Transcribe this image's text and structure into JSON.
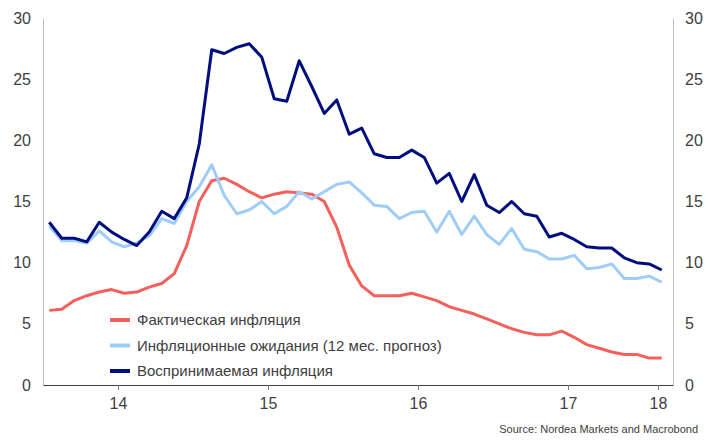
{
  "chart_data": {
    "type": "line",
    "source": "Source: Nordea Markets and Macrobond",
    "x": [
      14.0417,
      14.125,
      14.2083,
      14.2917,
      14.375,
      14.4583,
      14.5417,
      14.625,
      14.7083,
      14.7917,
      14.875,
      14.9583,
      15.0417,
      15.125,
      15.2083,
      15.2917,
      15.375,
      15.4583,
      15.5417,
      15.625,
      15.7083,
      15.7917,
      15.875,
      15.9583,
      16.0417,
      16.125,
      16.2083,
      16.2917,
      16.375,
      16.4583,
      16.5417,
      16.625,
      16.7083,
      16.7917,
      16.875,
      16.9583,
      17.0417,
      17.125,
      17.2083,
      17.2917,
      17.375,
      17.4583,
      17.5417,
      17.625,
      17.7083,
      17.7917,
      17.875,
      17.9583,
      18.0417,
      18.125
    ],
    "xlim": [
      14,
      18.2
    ],
    "xticks": [
      {
        "value": 14.5,
        "label": "14"
      },
      {
        "value": 15.5,
        "label": "15"
      },
      {
        "value": 16.5,
        "label": "16"
      },
      {
        "value": 17.5,
        "label": "17"
      },
      {
        "value": 18.1,
        "label": "18"
      }
    ],
    "ylim": [
      0,
      30
    ],
    "yticks": [
      0,
      5,
      10,
      15,
      20,
      25,
      30
    ],
    "y2lim": [
      0,
      30
    ],
    "y2ticks": [
      0,
      5,
      10,
      15,
      20,
      25,
      30
    ],
    "grid": false,
    "legend": "lower-left",
    "series": [
      {
        "name": "Фактическая инфляция",
        "color": "#f4605b",
        "values": [
          6.1,
          6.2,
          6.9,
          7.3,
          7.6,
          7.8,
          7.5,
          7.6,
          8.0,
          8.3,
          9.1,
          11.4,
          15.0,
          16.7,
          16.9,
          16.4,
          15.8,
          15.3,
          15.6,
          15.8,
          15.7,
          15.6,
          15.0,
          12.9,
          9.8,
          8.1,
          7.3,
          7.3,
          7.3,
          7.5,
          7.2,
          6.9,
          6.4,
          6.1,
          5.8,
          5.4,
          5.0,
          4.6,
          4.3,
          4.1,
          4.1,
          4.4,
          3.9,
          3.3,
          3.0,
          2.7,
          2.5,
          2.5,
          2.2,
          2.2
        ]
      },
      {
        "name": "Инфляционные ожидания (12 мес. прогноз)",
        "color": "#a0cdf8",
        "values": [
          13.0,
          11.8,
          11.8,
          11.6,
          12.6,
          11.7,
          11.3,
          11.6,
          12.2,
          13.6,
          13.2,
          15.0,
          16.2,
          18.0,
          15.5,
          14.0,
          14.3,
          15.0,
          14.0,
          14.6,
          15.8,
          15.2,
          15.8,
          16.4,
          16.6,
          15.7,
          14.7,
          14.6,
          13.6,
          14.1,
          14.2,
          12.5,
          14.2,
          12.3,
          13.8,
          12.3,
          11.5,
          12.8,
          11.1,
          10.9,
          10.3,
          10.3,
          10.6,
          9.5,
          9.6,
          9.9,
          8.7,
          8.7,
          8.9,
          8.4
        ]
      },
      {
        "name": "Воспринимаемая инфляция",
        "color": "#000f7d",
        "values": [
          13.3,
          12.0,
          12.0,
          11.7,
          13.3,
          12.5,
          11.9,
          11.4,
          12.5,
          14.2,
          13.6,
          15.3,
          19.7,
          27.4,
          27.1,
          27.6,
          27.9,
          26.8,
          23.4,
          23.2,
          26.5,
          24.4,
          22.2,
          23.3,
          20.5,
          21.0,
          18.9,
          18.6,
          18.6,
          19.2,
          18.6,
          16.5,
          17.3,
          15.0,
          17.2,
          14.7,
          14.1,
          15.0,
          14.0,
          13.8,
          12.1,
          12.4,
          11.9,
          11.3,
          11.2,
          11.2,
          10.4,
          10.0,
          9.9,
          9.4
        ]
      }
    ]
  }
}
